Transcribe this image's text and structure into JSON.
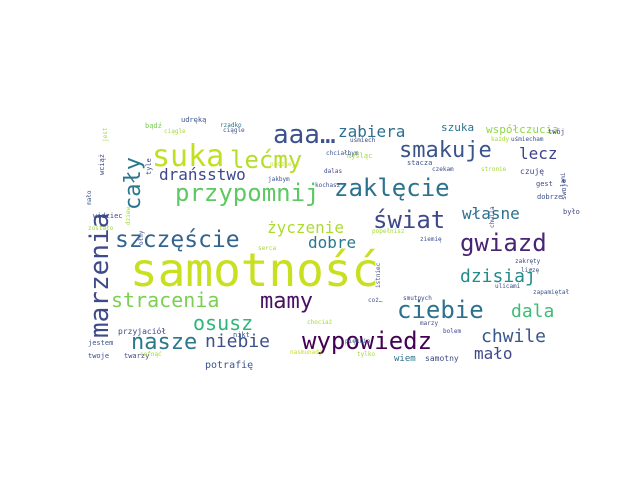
{
  "words": [
    {
      "text": "samotność",
      "color": "#c8e020"
    },
    {
      "text": "marzenia",
      "color": "#3f4a8a"
    },
    {
      "text": "suka",
      "color": "#c2df23"
    },
    {
      "text": "aaa…",
      "color": "#3b528b"
    },
    {
      "text": "szczęście",
      "color": "#32648e"
    },
    {
      "text": "gwiazd",
      "color": "#482475"
    },
    {
      "text": "przypomnij",
      "color": "#5ec962"
    },
    {
      "text": "zaklęcie",
      "color": "#2c728e"
    },
    {
      "text": "cały",
      "color": "#2a768e"
    },
    {
      "text": "wypowiedz",
      "color": "#440154"
    },
    {
      "text": "lećmy",
      "color": "#b5de2b"
    },
    {
      "text": "świat",
      "color": "#3e4989"
    },
    {
      "text": "mamy",
      "color": "#471063"
    },
    {
      "text": "ciebie",
      "color": "#2c728e"
    },
    {
      "text": "smakuje",
      "color": "#3a548c"
    },
    {
      "text": "stracenia",
      "color": "#7ad151"
    },
    {
      "text": "dzisiaj",
      "color": "#228c8d"
    },
    {
      "text": "zabiera",
      "color": "#2e6e8e"
    },
    {
      "text": "drańsstwo",
      "color": "#3e4989"
    },
    {
      "text": "osusz",
      "color": "#30b57a"
    },
    {
      "text": "nasze",
      "color": "#2a788e"
    },
    {
      "text": "niebie",
      "color": "#3b528b"
    },
    {
      "text": "życzenie",
      "color": "#addc30"
    },
    {
      "text": "dobre",
      "color": "#2a788e"
    },
    {
      "text": "własne",
      "color": "#2d708e"
    },
    {
      "text": "lecz",
      "color": "#404387"
    },
    {
      "text": "dala",
      "color": "#3dbc74"
    },
    {
      "text": "chwile",
      "color": "#39568c"
    },
    {
      "text": "mało",
      "color": "#3f4788"
    },
    {
      "text": "współczucia",
      "color": "#8fd744"
    },
    {
      "text": "szuka",
      "color": "#2d718e"
    },
    {
      "text": "potrafię",
      "color": "#3b528b"
    },
    {
      "text": "wiem",
      "color": "#2c728e"
    },
    {
      "text": "samotny",
      "color": "#3e4989"
    },
    {
      "text": "twarzy",
      "color": "#3f4788"
    },
    {
      "text": "twoje",
      "color": "#3e4a89"
    },
    {
      "text": "przyjaciół",
      "color": "#3e4989"
    },
    {
      "text": "jestem",
      "color": "#3b528b"
    },
    {
      "text": "nikt",
      "color": "#38588c"
    },
    {
      "text": "zostało",
      "color": "#a2da37"
    },
    {
      "text": "widziec",
      "color": "#3e4989"
    },
    {
      "text": "mało",
      "color": "#3b528b"
    },
    {
      "text": "wciąż",
      "color": "#3e4989"
    },
    {
      "text": "bądź",
      "color": "#7ad151"
    },
    {
      "text": "udręką",
      "color": "#3b528b"
    },
    {
      "text": "rzadko",
      "color": "#2c728e"
    },
    {
      "text": "ciągle",
      "color": "#3b528b"
    },
    {
      "text": "tyle",
      "color": "#3e4989"
    },
    {
      "text": "czuję",
      "color": "#3e4989"
    },
    {
      "text": "gest",
      "color": "#3e4989"
    },
    {
      "text": "dobrze",
      "color": "#3b528b"
    },
    {
      "text": "było",
      "color": "#3e4989"
    },
    {
      "text": "swoje",
      "color": "#3b528b"
    },
    {
      "text": "twój",
      "color": "#3e4989"
    },
    {
      "text": "każdy",
      "color": "#a8db34"
    },
    {
      "text": "uśmiecham",
      "color": "#3b528b"
    },
    {
      "text": "stronie",
      "color": "#a2da37"
    },
    {
      "text": "czekam",
      "color": "#3e4989"
    },
    {
      "text": "stacza",
      "color": "#3b528b"
    },
    {
      "text": "myśląc",
      "color": "#a2da37"
    },
    {
      "text": "uśmiech",
      "color": "#3e4989"
    },
    {
      "text": "chciałbym",
      "color": "#3b528b"
    },
    {
      "text": "nadzieje",
      "color": "#c8e020"
    },
    {
      "text": "dalas",
      "color": "#3e4989"
    },
    {
      "text": "kochasz",
      "color": "#3b528b"
    },
    {
      "text": "jakbym",
      "color": "#3b528b"
    },
    {
      "text": "serca",
      "color": "#a2da37"
    },
    {
      "text": "zakręty",
      "color": "#3e4989"
    },
    {
      "text": "liczę",
      "color": "#3b528b"
    },
    {
      "text": "ulicami",
      "color": "#3e4989"
    },
    {
      "text": "smutnych",
      "color": "#3e4989"
    },
    {
      "text": "zapamiętał",
      "color": "#3b528b"
    },
    {
      "text": "bolem",
      "color": "#3e4989"
    },
    {
      "text": "marzy",
      "color": "#3e4989"
    },
    {
      "text": "tylko",
      "color": "#a2da37"
    },
    {
      "text": "pięknie",
      "color": "#3b528b"
    },
    {
      "text": "chociaż",
      "color": "#a2da37"
    },
    {
      "text": "popełnisz",
      "color": "#a2da37"
    },
    {
      "text": "cofnąć",
      "color": "#a2da37"
    },
    {
      "text": "istniec",
      "color": "#3e4989"
    },
    {
      "text": "coż…",
      "color": "#3b528b"
    },
    {
      "text": "chwila",
      "color": "#3e4989"
    },
    {
      "text": "ołny",
      "color": "#3e4989"
    },
    {
      "text": "dziew",
      "color": "#a2da37"
    },
    {
      "text": "jest",
      "color": "#a2da37"
    },
    {
      "text": "nasmunadj",
      "color": "#c8e020"
    },
    {
      "text": "ziemię",
      "color": "#3b528b"
    },
    {
      "text": "ciągle",
      "color": "#a2da37"
    },
    {
      "text": "lami",
      "color": "#3e4989"
    }
  ]
}
